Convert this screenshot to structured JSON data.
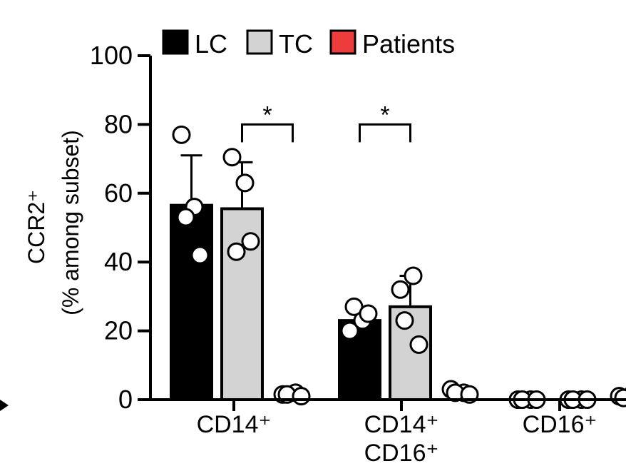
{
  "chart_data": {
    "type": "bar",
    "ylabel_line1": "CCR2⁺",
    "ylabel_line2": "(% among subset)",
    "ylim": [
      0,
      100
    ],
    "yticks": [
      "0",
      "20",
      "40",
      "60",
      "80",
      "100"
    ],
    "categories": [
      {
        "line1": "CD14⁺",
        "line2": ""
      },
      {
        "line1": "CD14⁺",
        "line2": "CD16⁺"
      },
      {
        "line1": "CD16⁺",
        "line2": ""
      }
    ],
    "legend_position": "top",
    "series": [
      {
        "name": "LC",
        "color": "#000000",
        "values": [
          56.5,
          23,
          0
        ],
        "error": [
          14.5,
          3.5,
          0
        ],
        "points": [
          [
            77,
            56,
            53,
            42
          ],
          [
            20,
            23,
            27,
            25
          ],
          [
            0,
            0,
            0,
            0
          ]
        ]
      },
      {
        "name": "TC",
        "color": "#d3d3d3",
        "values": [
          55.5,
          27,
          0
        ],
        "error": [
          13.5,
          9,
          0
        ],
        "points": [
          [
            70.5,
            63,
            43,
            46
          ],
          [
            32,
            36,
            23,
            16
          ],
          [
            0,
            0,
            0,
            0
          ]
        ]
      },
      {
        "name": "Patients",
        "color": "#ee3b3b",
        "values": [
          0,
          0,
          0
        ],
        "error": [
          0,
          0,
          0
        ],
        "points": [
          [
            1.5,
            2,
            1.5,
            1
          ],
          [
            3,
            2,
            2,
            1.5
          ],
          [
            1,
            1.5,
            0.5,
            1
          ]
        ]
      }
    ],
    "significance": [
      {
        "category": 0,
        "from_series": 1,
        "to_series": 2,
        "label": "*"
      },
      {
        "category": 1,
        "from_series": 0,
        "to_series": 1,
        "label": "*"
      }
    ]
  }
}
